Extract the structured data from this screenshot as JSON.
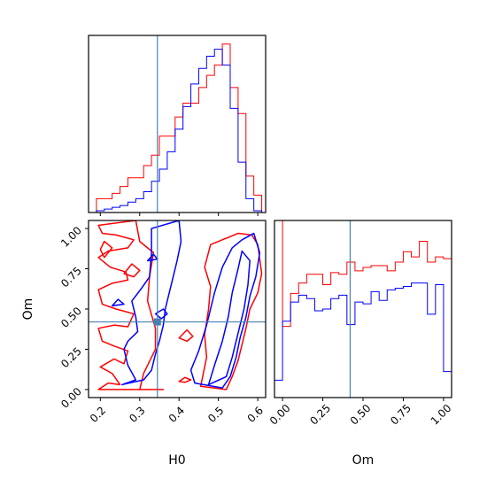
{
  "chart_data": {
    "type": "corner",
    "parameters": [
      "H0",
      "Om"
    ],
    "truths": {
      "H0": 0.345,
      "Om": 0.42
    },
    "colors": {
      "red": "#ff0000",
      "blue": "#0000ff",
      "truth": "#4682b4"
    },
    "panels": {
      "h0_histogram": {
        "type": "histogram",
        "xlim": [
          0.17,
          0.62
        ],
        "ylim": [
          0,
          1.02
        ],
        "x_ticks": [
          0.2,
          0.3,
          0.4,
          0.5,
          0.6
        ],
        "bin_edges": [
          0.17,
          0.19,
          0.21,
          0.23,
          0.25,
          0.27,
          0.29,
          0.31,
          0.33,
          0.35,
          0.37,
          0.39,
          0.41,
          0.43,
          0.45,
          0.47,
          0.49,
          0.51,
          0.53,
          0.55,
          0.57,
          0.59,
          0.61
        ],
        "series": [
          {
            "name": "red",
            "counts": [
              0.0,
              0.08,
              0.08,
              0.11,
              0.15,
              0.2,
              0.2,
              0.27,
              0.33,
              0.44,
              0.44,
              0.55,
              0.63,
              0.63,
              0.72,
              0.79,
              0.85,
              0.97,
              0.72,
              0.57,
              0.21,
              0.1
            ]
          },
          {
            "name": "blue",
            "counts": [
              0.0,
              0.01,
              0.02,
              0.03,
              0.04,
              0.06,
              0.08,
              0.12,
              0.18,
              0.25,
              0.35,
              0.48,
              0.61,
              0.74,
              0.83,
              0.9,
              0.94,
              0.85,
              0.6,
              0.29,
              0.08,
              0.01
            ]
          }
        ]
      },
      "om_histogram": {
        "type": "histogram",
        "xlim": [
          -0.05,
          1.05
        ],
        "ylim": [
          0,
          1.02
        ],
        "x_ticks": [
          0.0,
          0.25,
          0.5,
          0.75,
          1.0
        ],
        "x_tick_labels": [
          "0.00",
          "0.25",
          "0.50",
          "0.75",
          "1.00"
        ],
        "bin_edges": [
          -0.05,
          0.0,
          0.05,
          0.1,
          0.15,
          0.2,
          0.25,
          0.3,
          0.35,
          0.4,
          0.45,
          0.5,
          0.55,
          0.6,
          0.65,
          0.7,
          0.75,
          0.8,
          0.85,
          0.9,
          0.95,
          1.0,
          1.05
        ],
        "series": [
          {
            "name": "red",
            "counts": [
              1.02,
              0.41,
              0.6,
              0.66,
              0.71,
              0.71,
              0.65,
              0.72,
              0.71,
              0.78,
              0.73,
              0.75,
              0.76,
              0.76,
              0.73,
              0.78,
              0.84,
              0.81,
              0.9,
              0.78,
              0.81,
              0.8
            ]
          },
          {
            "name": "blue",
            "counts": [
              0.1,
              0.44,
              0.55,
              0.59,
              0.57,
              0.5,
              0.51,
              0.57,
              0.59,
              0.42,
              0.55,
              0.54,
              0.61,
              0.56,
              0.62,
              0.63,
              0.64,
              0.66,
              0.66,
              0.48,
              0.65,
              0.15
            ]
          }
        ]
      },
      "joint_contours": {
        "type": "contour",
        "xlim": [
          0.17,
          0.62
        ],
        "ylim": [
          -0.05,
          1.05
        ],
        "x_ticks": [
          0.2,
          0.3,
          0.4,
          0.5,
          0.6
        ],
        "y_ticks": [
          0.0,
          0.25,
          0.5,
          0.75,
          1.0
        ],
        "y_tick_labels": [
          "0.00",
          "0.25",
          "0.50",
          "0.75",
          "1.00"
        ],
        "contours": [
          {
            "series": "red",
            "points": [
              [
                0.195,
                0.0
              ],
              [
                0.22,
                0.04
              ],
              [
                0.25,
                0.03
              ],
              [
                0.23,
                0.1
              ],
              [
                0.2,
                0.14
              ],
              [
                0.235,
                0.19
              ],
              [
                0.26,
                0.16
              ],
              [
                0.27,
                0.24
              ],
              [
                0.235,
                0.27
              ],
              [
                0.205,
                0.3
              ],
              [
                0.195,
                0.38
              ],
              [
                0.235,
                0.4
              ],
              [
                0.27,
                0.39
              ],
              [
                0.285,
                0.47
              ],
              [
                0.24,
                0.5
              ],
              [
                0.205,
                0.53
              ],
              [
                0.195,
                0.62
              ],
              [
                0.23,
                0.66
              ],
              [
                0.27,
                0.68
              ],
              [
                0.265,
                0.73
              ],
              [
                0.225,
                0.76
              ],
              [
                0.195,
                0.82
              ],
              [
                0.22,
                0.86
              ],
              [
                0.27,
                0.88
              ],
              [
                0.285,
                0.93
              ],
              [
                0.24,
                0.96
              ],
              [
                0.205,
                0.97
              ],
              [
                0.195,
                1.02
              ],
              [
                0.29,
                1.05
              ],
              [
                0.3,
                0.92
              ],
              [
                0.335,
                0.85
              ],
              [
                0.325,
                0.7
              ],
              [
                0.32,
                0.55
              ],
              [
                0.34,
                0.38
              ],
              [
                0.34,
                0.25
              ],
              [
                0.31,
                0.1
              ],
              [
                0.3,
                0.0
              ],
              [
                0.36,
                0.0
              ]
            ]
          },
          {
            "series": "red",
            "points": [
              [
                0.455,
                0.02
              ],
              [
                0.47,
                0.2
              ],
              [
                0.465,
                0.34
              ],
              [
                0.475,
                0.5
              ],
              [
                0.48,
                0.64
              ],
              [
                0.465,
                0.76
              ],
              [
                0.48,
                0.9
              ],
              [
                0.55,
                0.97
              ],
              [
                0.585,
                0.96
              ],
              [
                0.6,
                0.9
              ],
              [
                0.61,
                0.72
              ],
              [
                0.6,
                0.6
              ],
              [
                0.58,
                0.5
              ],
              [
                0.57,
                0.38
              ],
              [
                0.56,
                0.28
              ],
              [
                0.55,
                0.18
              ],
              [
                0.535,
                0.08
              ],
              [
                0.52,
                0.0
              ]
            ]
          },
          {
            "series": "red",
            "points": [
              [
                0.21,
                0.82
              ],
              [
                0.23,
                0.88
              ],
              [
                0.21,
                0.92
              ],
              [
                0.2,
                0.87
              ]
            ]
          },
          {
            "series": "red",
            "points": [
              [
                0.26,
                0.72
              ],
              [
                0.28,
                0.78
              ],
              [
                0.3,
                0.74
              ],
              [
                0.285,
                0.7
              ]
            ]
          },
          {
            "series": "red",
            "points": [
              [
                0.4,
                0.32
              ],
              [
                0.42,
                0.37
              ],
              [
                0.435,
                0.33
              ],
              [
                0.42,
                0.3
              ]
            ]
          },
          {
            "series": "red",
            "points": [
              [
                0.4,
                0.05
              ],
              [
                0.415,
                0.075
              ],
              [
                0.43,
                0.06
              ],
              [
                0.415,
                0.045
              ]
            ]
          },
          {
            "series": "blue",
            "points": [
              [
                0.255,
                0.03
              ],
              [
                0.29,
                0.06
              ],
              [
                0.27,
                0.15
              ],
              [
                0.26,
                0.25
              ],
              [
                0.27,
                0.3
              ],
              [
                0.295,
                0.36
              ],
              [
                0.29,
                0.45
              ],
              [
                0.28,
                0.55
              ],
              [
                0.305,
                0.63
              ],
              [
                0.325,
                0.7
              ],
              [
                0.33,
                0.85
              ],
              [
                0.33,
                1.0
              ],
              [
                0.4,
                1.05
              ],
              [
                0.405,
                0.92
              ],
              [
                0.395,
                0.8
              ],
              [
                0.385,
                0.7
              ],
              [
                0.375,
                0.6
              ],
              [
                0.365,
                0.5
              ],
              [
                0.36,
                0.4
              ],
              [
                0.35,
                0.3
              ],
              [
                0.34,
                0.22
              ],
              [
                0.33,
                0.12
              ],
              [
                0.31,
                0.06
              ]
            ]
          },
          {
            "series": "blue",
            "points": [
              [
                0.44,
                0.04
              ],
              [
                0.43,
                0.12
              ],
              [
                0.45,
                0.24
              ],
              [
                0.47,
                0.4
              ],
              [
                0.49,
                0.6
              ],
              [
                0.51,
                0.76
              ],
              [
                0.535,
                0.88
              ],
              [
                0.56,
                0.93
              ],
              [
                0.59,
                0.97
              ],
              [
                0.605,
                0.85
              ],
              [
                0.595,
                0.7
              ],
              [
                0.58,
                0.58
              ],
              [
                0.57,
                0.45
              ],
              [
                0.555,
                0.32
              ],
              [
                0.545,
                0.2
              ],
              [
                0.53,
                0.08
              ],
              [
                0.51,
                0.01
              ]
            ]
          },
          {
            "series": "blue",
            "points": [
              [
                0.475,
                0.03
              ],
              [
                0.49,
                0.15
              ],
              [
                0.51,
                0.3
              ],
              [
                0.525,
                0.45
              ],
              [
                0.535,
                0.6
              ],
              [
                0.55,
                0.75
              ],
              [
                0.56,
                0.86
              ],
              [
                0.58,
                0.8
              ],
              [
                0.575,
                0.65
              ],
              [
                0.565,
                0.5
              ],
              [
                0.55,
                0.35
              ],
              [
                0.535,
                0.2
              ],
              [
                0.52,
                0.08
              ]
            ]
          },
          {
            "series": "blue",
            "points": [
              [
                0.32,
                0.8
              ],
              [
                0.335,
                0.84
              ],
              [
                0.345,
                0.81
              ]
            ]
          },
          {
            "series": "blue",
            "points": [
              [
                0.23,
                0.52
              ],
              [
                0.245,
                0.56
              ],
              [
                0.26,
                0.53
              ]
            ]
          },
          {
            "series": "blue",
            "points": [
              [
                0.34,
                0.47
              ],
              [
                0.36,
                0.5
              ],
              [
                0.37,
                0.47
              ],
              [
                0.355,
                0.44
              ]
            ]
          }
        ]
      }
    },
    "xlabels": {
      "h0": "H0",
      "om": "Om"
    },
    "ylabel": "Om"
  }
}
